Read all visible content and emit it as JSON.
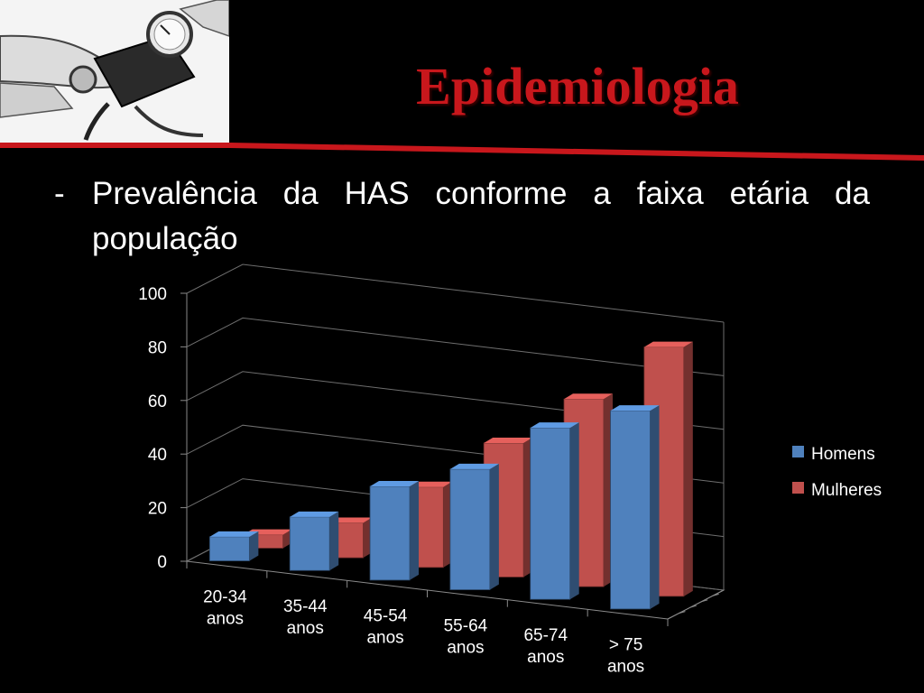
{
  "slide": {
    "title": "Epidemiologia",
    "bullet_dash": "-",
    "bullet_text": "Prevalência da HAS conforme a faixa etária da população"
  },
  "photo": {
    "subject": "blood-pressure-measurement"
  },
  "colors": {
    "title": "#c8171c",
    "accent_line": "#c8171c",
    "homens": "#4f81bd",
    "mulheres": "#c0504d"
  },
  "chart_data": {
    "type": "bar",
    "subtype": "3d-clustered-column",
    "categories": [
      [
        "20-34",
        "anos"
      ],
      [
        "35-44",
        "anos"
      ],
      [
        "45-54",
        "anos"
      ],
      [
        "55-64",
        "anos"
      ],
      [
        "65-74",
        "anos"
      ],
      [
        "> 75",
        "anos"
      ]
    ],
    "series": [
      {
        "name": "Homens",
        "color": "#4f81bd",
        "values": [
          9,
          20,
          35,
          45,
          64,
          74
        ]
      },
      {
        "name": "Mulheres",
        "color": "#c0504d",
        "values": [
          5,
          13,
          30,
          50,
          70,
          93
        ]
      }
    ],
    "yticks": [
      "0",
      "20",
      "40",
      "60",
      "80",
      "100"
    ],
    "ylim": [
      0,
      100
    ],
    "grid": true,
    "legend": "right"
  }
}
